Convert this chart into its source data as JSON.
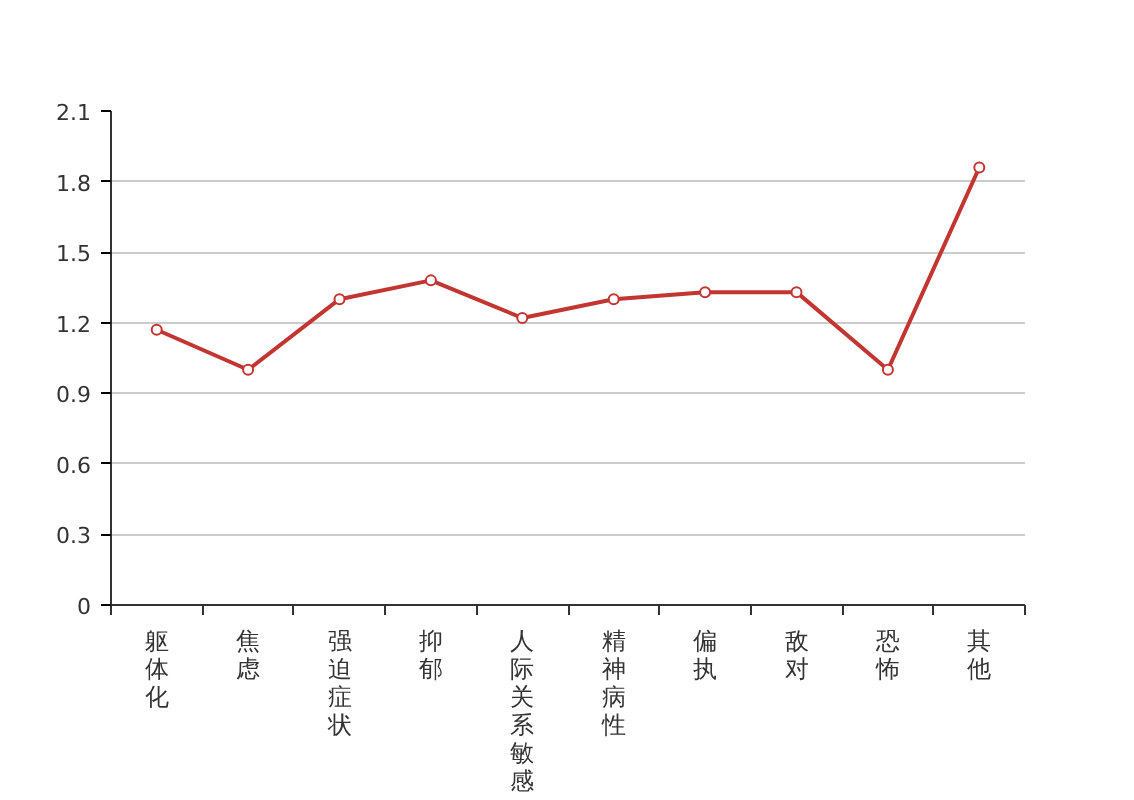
{
  "chart_data": {
    "type": "line",
    "categories": [
      "躯体化",
      "焦虑",
      "强迫症状",
      "抑郁",
      "人际关系敏感",
      "精神病性",
      "偏执",
      "敌对",
      "恐怖",
      "其他"
    ],
    "series": [
      {
        "color": "#c23531",
        "values": [
          1.17,
          1.0,
          1.3,
          1.38,
          1.22,
          1.3,
          1.33,
          1.33,
          1.0,
          1.86
        ]
      }
    ],
    "ylim": [
      0,
      2.1
    ],
    "yticks": [
      0,
      0.3,
      0.6,
      0.9,
      1.2,
      1.5,
      1.8,
      2.1
    ],
    "grid": "y",
    "marker": "circle",
    "line_style": "solid"
  }
}
